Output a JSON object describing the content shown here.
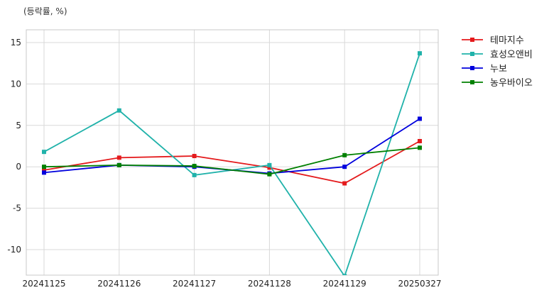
{
  "chart_data": {
    "type": "line",
    "unit_label": "(등락률, %)",
    "x": [
      "20241125",
      "20241126",
      "20241127",
      "20241128",
      "20241129",
      "20250327"
    ],
    "y_ticks": [
      15,
      10,
      5,
      0,
      -5,
      -10
    ],
    "ylim": [
      -13.2,
      16.3
    ],
    "grid": true,
    "legend_position": "right-outside",
    "series": [
      {
        "name": "테마지수",
        "color": "#e41a1c",
        "values": [
          -0.4,
          1.1,
          1.3,
          -0.1,
          -2.0,
          3.1
        ]
      },
      {
        "name": "효성오앤비",
        "color": "#20b2aa",
        "values": [
          1.8,
          6.8,
          -1.0,
          0.2,
          -13.2,
          13.7
        ]
      },
      {
        "name": "누보",
        "color": "#0000dd",
        "values": [
          -0.7,
          0.2,
          0.0,
          -0.8,
          0.0,
          5.8
        ]
      },
      {
        "name": "농우바이오",
        "color": "#008000",
        "values": [
          0.0,
          0.2,
          0.1,
          -0.9,
          1.4,
          2.3
        ]
      }
    ]
  }
}
